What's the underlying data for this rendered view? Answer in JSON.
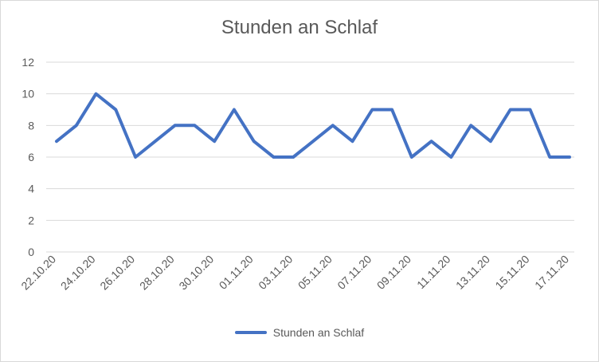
{
  "chart_data": {
    "type": "line",
    "title": "Stunden an Schlaf",
    "xlabel": "",
    "ylabel": "",
    "ylim": [
      0,
      12
    ],
    "yticks": [
      0,
      2,
      4,
      6,
      8,
      10,
      12
    ],
    "grid": true,
    "legend_position": "bottom",
    "x": [
      "22.10.20",
      "23.10.20",
      "24.10.20",
      "25.10.20",
      "26.10.20",
      "27.10.20",
      "28.10.20",
      "29.10.20",
      "30.10.20",
      "31.10.20",
      "01.11.20",
      "02.11.20",
      "03.11.20",
      "04.11.20",
      "05.11.20",
      "06.11.20",
      "07.11.20",
      "08.11.20",
      "09.11.20",
      "10.11.20",
      "11.11.20",
      "12.11.20",
      "13.11.20",
      "14.11.20",
      "15.11.20",
      "16.11.20",
      "17.11.20"
    ],
    "xtick_labels": [
      "22.10.20",
      "24.10.20",
      "26.10.20",
      "28.10.20",
      "30.10.20",
      "01.11.20",
      "03.11.20",
      "05.11.20",
      "07.11.20",
      "09.11.20",
      "11.11.20",
      "13.11.20",
      "15.11.20",
      "17.11.20"
    ],
    "series": [
      {
        "name": "Stunden an Schlaf",
        "color": "#4472c4",
        "values": [
          7,
          8,
          10,
          9,
          6,
          7,
          8,
          8,
          7,
          9,
          7,
          6,
          6,
          7,
          8,
          7,
          9,
          9,
          6,
          7,
          6,
          8,
          7,
          9,
          9,
          6,
          6
        ]
      }
    ]
  }
}
